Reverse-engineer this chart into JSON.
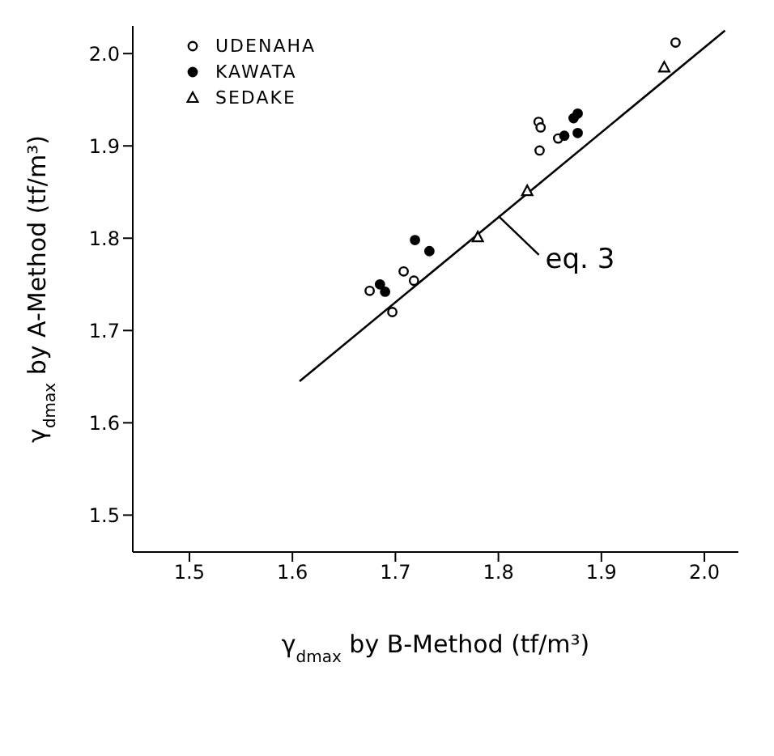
{
  "chart_data": {
    "type": "scatter",
    "xlabel": "γ$_{dmax}$ by B-Method (tf/m³)",
    "ylabel": "γ$_{dmax}$ by A-Method (tf/m³)",
    "xlim": [
      1.445,
      2.033
    ],
    "ylim": [
      1.46,
      2.03
    ],
    "xticks": [
      1.5,
      1.6,
      1.7,
      1.8,
      1.9,
      {
        "value": 2,
        "label": "2.0"
      }
    ],
    "yticks": [
      1.5,
      1.6,
      1.7,
      1.8,
      1.9,
      {
        "value": 2,
        "label": "2.0"
      }
    ],
    "grid": false,
    "legend": "top left",
    "series": [
      {
        "name": "UDENAHA",
        "marker": "circle",
        "color": "#ffffff",
        "x": [
          1.675,
          1.697,
          1.708,
          1.718,
          1.84,
          1.839,
          1.841,
          1.858,
          1.972
        ],
        "values": [
          1.743,
          1.72,
          1.764,
          1.754,
          1.895,
          1.926,
          1.92,
          1.908,
          2.012
        ]
      },
      {
        "name": "KAWATA",
        "marker": "circle",
        "color": "#000000",
        "x": [
          1.685,
          1.69,
          1.719,
          1.733,
          1.864,
          1.877,
          1.873,
          1.877
        ],
        "values": [
          1.75,
          1.742,
          1.798,
          1.786,
          1.911,
          1.914,
          1.93,
          1.935
        ]
      },
      {
        "name": "SEDAKE",
        "marker": "triangle",
        "color": "#ffffff",
        "x": [
          1.78,
          1.828,
          1.961
        ],
        "values": [
          1.801,
          1.851,
          1.985
        ]
      },
      {
        "type": "line",
        "marker": "none",
        "line_style": "solid",
        "color": "#000000",
        "x": [
          1.607,
          2.02
        ],
        "values": [
          1.645,
          2.025
        ]
      }
    ],
    "annotations": [
      {
        "text": "eq. 3",
        "x": 1.8,
        "y": 1.824
      }
    ]
  }
}
